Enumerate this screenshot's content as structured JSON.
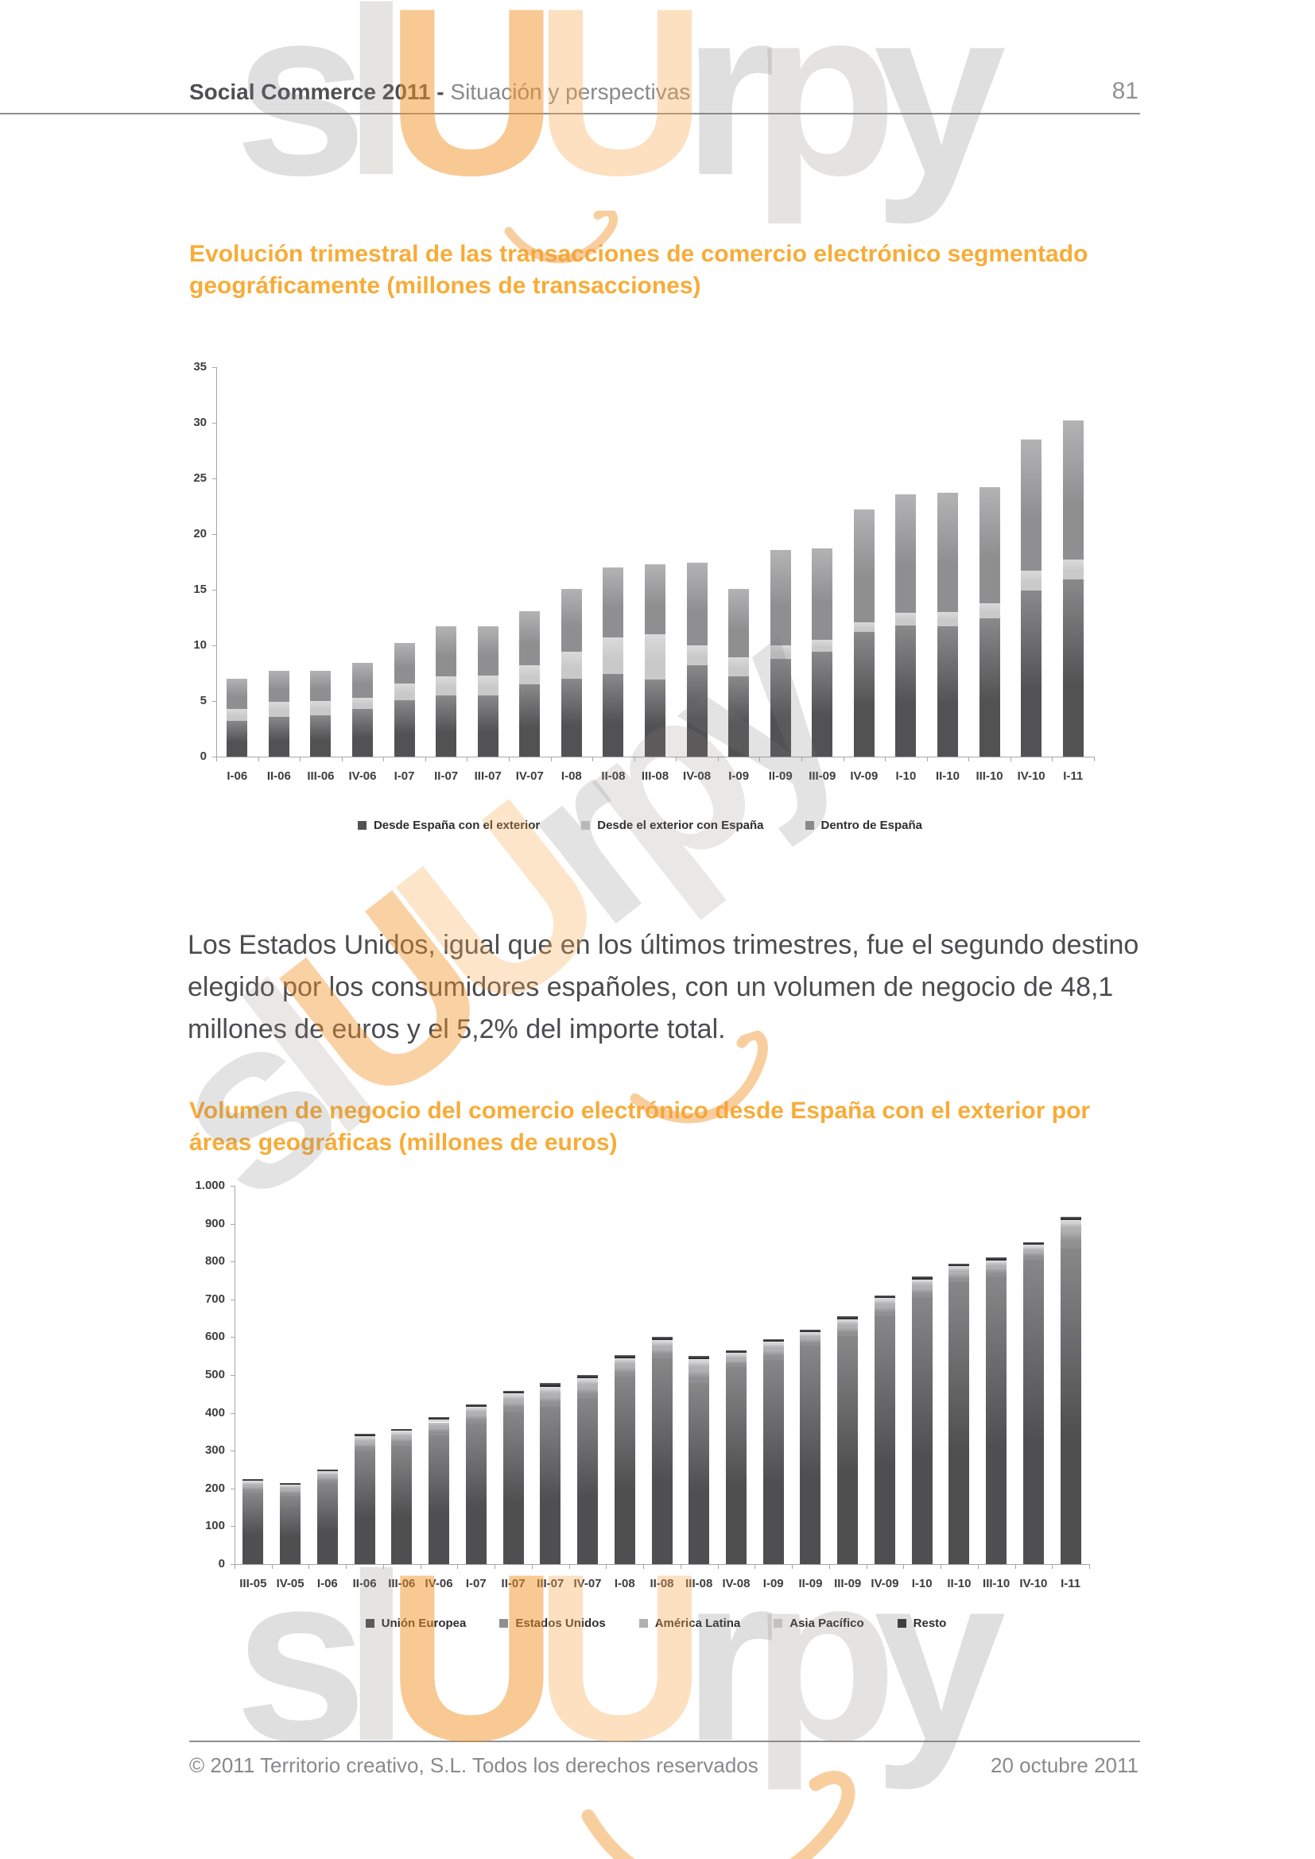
{
  "header": {
    "title_bold": "Social Commerce 2011 -",
    "title_regular": " Situación y perspectivas",
    "page_number": "81"
  },
  "paragraph": "Los Estados Unidos, igual que en los últimos trimestres, fue el segundo destino elegido por los consumidores españoles, con un volumen de negocio de 48,1 millones de euros y el 5,2% del importe total.",
  "footer": {
    "left": "© 2011 Territorio creativo, S.L. Todos los derechos reservados",
    "right": "20 octubre 2011"
  },
  "watermark": {
    "text": "slUUrpy",
    "swoosh_color": "rgba(243,158,64,0.5)",
    "letters": [
      {
        "ch": "s",
        "color": "rgba(120,120,124,0.24)"
      },
      {
        "ch": "l",
        "color": "rgba(140,130,118,0.22)"
      },
      {
        "ch": "U",
        "color": "rgba(244,148,40,0.50)"
      },
      {
        "ch": "U",
        "color": "rgba(247,170,80,0.36)"
      },
      {
        "ch": "r",
        "color": "rgba(120,120,124,0.24)"
      },
      {
        "ch": "p",
        "color": "rgba(135,128,118,0.22)"
      },
      {
        "ch": "y",
        "color": "rgba(120,120,124,0.24)"
      }
    ]
  },
  "accent_color": "#f7ac38",
  "chart_data": [
    {
      "type": "bar",
      "stacked": true,
      "title": "Evolución trimestral de las transacciones de comercio electrónico segmentado geográficamente (millones de transacciones)",
      "xlabel": "",
      "ylabel": "",
      "ylim": [
        0,
        35
      ],
      "grid": false,
      "legend_position": "bottom",
      "yticks": [
        {
          "value": 0,
          "label": "0"
        },
        {
          "value": 5,
          "label": "5"
        },
        {
          "value": 10,
          "label": "10"
        },
        {
          "value": 15,
          "label": "15"
        },
        {
          "value": 20,
          "label": "20"
        },
        {
          "value": 25,
          "label": "25"
        },
        {
          "value": 30,
          "label": "30"
        },
        {
          "value": 35,
          "label": "35"
        }
      ],
      "categories": [
        "I-06",
        "II-06",
        "III-06",
        "IV-06",
        "I-07",
        "II-07",
        "III-07",
        "IV-07",
        "I-08",
        "II-08",
        "III-08",
        "IV-08",
        "I-09",
        "II-09",
        "III-09",
        "IV-09",
        "I-10",
        "II-10",
        "III-10",
        "IV-10",
        "I-11"
      ],
      "series": [
        {
          "name": "Desde España con el exterior",
          "color": "#525254",
          "values": [
            3.2,
            3.6,
            3.7,
            4.3,
            5.1,
            5.5,
            5.5,
            6.5,
            7.0,
            7.4,
            6.9,
            8.2,
            7.2,
            8.8,
            9.4,
            11.2,
            11.8,
            11.7,
            12.4,
            14.9,
            15.9
          ]
        },
        {
          "name": "Desde el exterior con España",
          "color": "#c9c9c9",
          "values": [
            1.1,
            1.3,
            1.3,
            1.0,
            1.5,
            1.7,
            1.8,
            1.7,
            2.4,
            3.3,
            4.1,
            1.8,
            1.7,
            1.2,
            1.1,
            0.9,
            1.1,
            1.3,
            1.4,
            1.8,
            1.8
          ]
        },
        {
          "name": "Dentro de España",
          "color": "#8f8f91",
          "values": [
            2.7,
            2.8,
            2.7,
            3.1,
            3.6,
            4.5,
            4.4,
            4.9,
            5.7,
            6.3,
            6.3,
            7.4,
            6.2,
            8.6,
            8.2,
            10.1,
            10.7,
            10.7,
            10.4,
            11.8,
            12.5
          ]
        }
      ]
    },
    {
      "type": "bar",
      "stacked": true,
      "title": "Volumen de negocio del comercio electrónico desde España con el exterior por áreas geográficas (millones de euros)",
      "xlabel": "",
      "ylabel": "",
      "ylim": [
        0,
        1000
      ],
      "grid": false,
      "legend_position": "bottom",
      "yticks": [
        {
          "value": 0,
          "label": "0"
        },
        {
          "value": 100,
          "label": "100"
        },
        {
          "value": 200,
          "label": "200"
        },
        {
          "value": 300,
          "label": "300"
        },
        {
          "value": 400,
          "label": "400"
        },
        {
          "value": 500,
          "label": "500"
        },
        {
          "value": 600,
          "label": "600"
        },
        {
          "value": 700,
          "label": "700"
        },
        {
          "value": 800,
          "label": "800"
        },
        {
          "value": 900,
          "label": "900"
        },
        {
          "value": 1000,
          "label": "1.000"
        }
      ],
      "categories": [
        "III-05",
        "IV-05",
        "I-06",
        "II-06",
        "III-06",
        "IV-06",
        "I-07",
        "II-07",
        "III-07",
        "IV-07",
        "I-08",
        "II-08",
        "III-08",
        "IV-08",
        "I-09",
        "II-09",
        "III-09",
        "IV-09",
        "I-10",
        "II-10",
        "III-10",
        "IV-10",
        "I-11"
      ],
      "series": [
        {
          "name": "Unión Europea",
          "color": "#4f4f51",
          "values": [
            190,
            180,
            215,
            300,
            313,
            340,
            372,
            403,
            415,
            440,
            495,
            545,
            480,
            520,
            540,
            577,
            602,
            655,
            705,
            745,
            760,
            805,
            835
          ]
        },
        {
          "name": "Estados Unidos",
          "color": "#909092",
          "values": [
            16,
            16,
            16,
            20,
            20,
            22,
            23,
            25,
            28,
            27,
            26,
            25,
            32,
            20,
            25,
            19,
            24,
            25,
            25,
            23,
            23,
            20,
            48
          ]
        },
        {
          "name": "América Latina",
          "color": "#b0b0b2",
          "values": [
            9,
            9,
            9,
            12,
            12,
            13,
            14,
            15,
            17,
            16,
            16,
            15,
            19,
            12,
            15,
            12,
            14,
            15,
            15,
            13,
            13,
            12,
            17
          ]
        },
        {
          "name": "Asia Pacífico",
          "color": "#d2d2d4",
          "values": [
            5,
            5,
            5,
            7,
            7,
            7,
            7,
            8,
            9,
            9,
            8,
            8,
            10,
            7,
            8,
            6,
            8,
            8,
            8,
            7,
            7,
            7,
            10
          ]
        },
        {
          "name": "Resto",
          "color": "#2d2d2f",
          "values": [
            5,
            5,
            5,
            6,
            6,
            6,
            6,
            7,
            9,
            8,
            8,
            7,
            9,
            6,
            7,
            6,
            7,
            7,
            7,
            7,
            7,
            6,
            8
          ]
        }
      ]
    }
  ]
}
